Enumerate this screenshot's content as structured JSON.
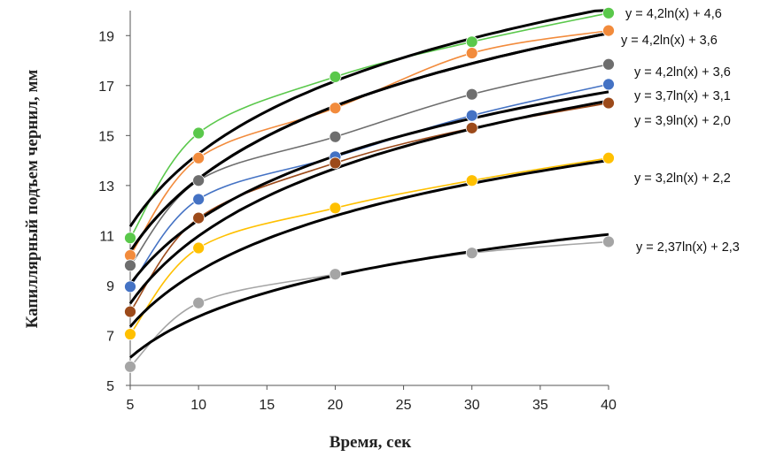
{
  "chart_data": {
    "type": "scatter",
    "title": "",
    "xlabel": "Время, сек",
    "ylabel": "Капиллярный подъем чернил, мм",
    "xlim": [
      5,
      40
    ],
    "ylim": [
      5,
      20
    ],
    "xticks": [
      "5",
      "10",
      "15",
      "20",
      "25",
      "30",
      "35",
      "40"
    ],
    "yticks": [
      "5",
      "7",
      "9",
      "11",
      "13",
      "15",
      "17",
      "19"
    ],
    "grid": false,
    "x": [
      5,
      10,
      20,
      30,
      40
    ],
    "series": [
      {
        "color": "#5ac84b",
        "values": [
          10.9,
          15.1,
          17.35,
          18.75,
          19.9
        ],
        "trend": {
          "a": 4.2,
          "b": 4.6,
          "label": "y = 4,2ln(x) + 4,6"
        }
      },
      {
        "color": "#f28b3c",
        "values": [
          10.2,
          14.1,
          16.1,
          18.3,
          19.2
        ],
        "trend": {
          "a": 4.2,
          "b": 3.6,
          "label": "y = 4,2ln(x) + 3,6"
        }
      },
      {
        "color": "#6e6e6e",
        "values": [
          9.8,
          13.2,
          14.95,
          16.65,
          17.85
        ],
        "trend": {
          "a": 4.2,
          "b": 3.6,
          "label": "y = 4,2ln(x) + 3,6"
        }
      },
      {
        "color": "#4472c4",
        "values": [
          8.95,
          12.45,
          14.15,
          15.8,
          17.05
        ],
        "trend": {
          "a": 3.7,
          "b": 3.1,
          "label": "y = 3,7ln(x) + 3,1"
        }
      },
      {
        "color": "#9c4a1a",
        "values": [
          7.95,
          11.7,
          13.9,
          15.3,
          16.3
        ],
        "trend": {
          "a": 3.9,
          "b": 2.0,
          "label": "y = 3,9ln(x) + 2,0"
        }
      },
      {
        "color": "#ffc000",
        "values": [
          7.05,
          10.5,
          12.1,
          13.2,
          14.1
        ],
        "trend": {
          "a": 3.2,
          "b": 2.2,
          "label": "y = 3,2ln(x) + 2,2"
        }
      },
      {
        "color": "#a5a5a5",
        "values": [
          5.75,
          8.3,
          9.45,
          10.3,
          10.75
        ],
        "trend": {
          "a": 2.37,
          "b": 2.3,
          "label": "y = 2,37ln(x) + 2,3"
        }
      }
    ]
  }
}
